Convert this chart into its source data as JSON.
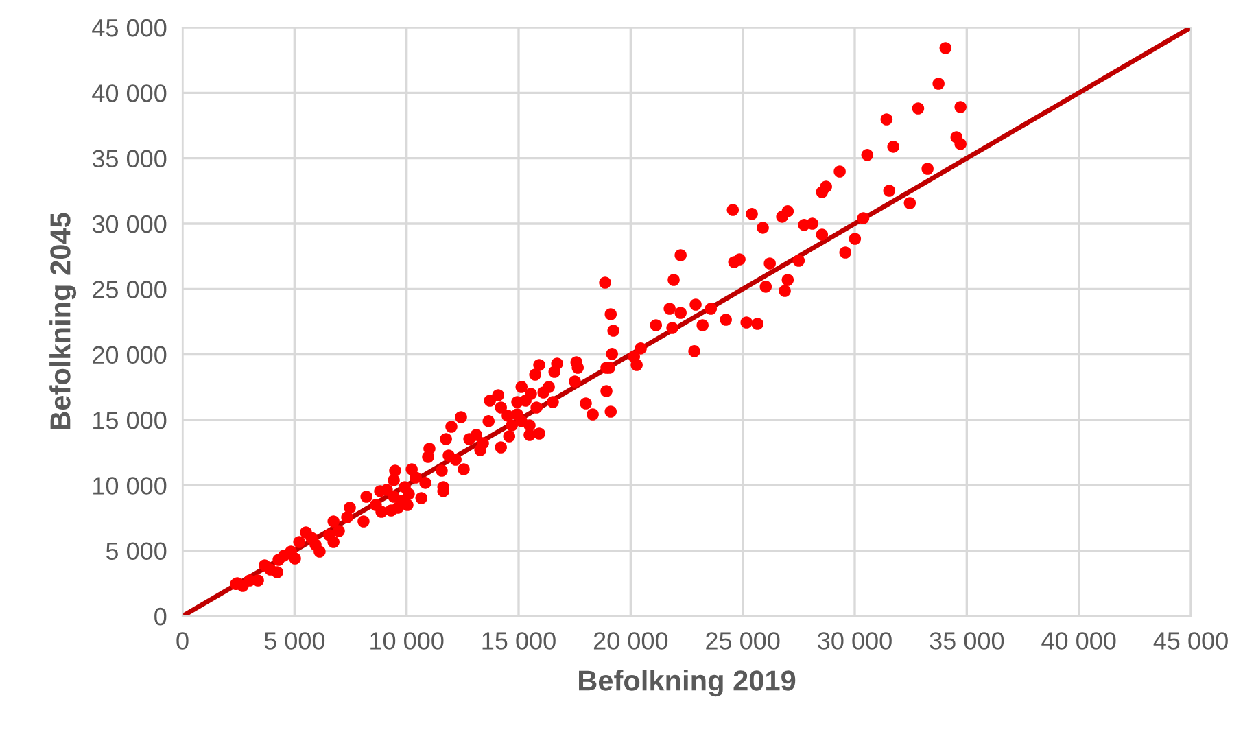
{
  "chart_data": {
    "type": "scatter",
    "xlabel": "Befolkning 2019",
    "ylabel": "Befolkning 2045",
    "xlim": [
      0,
      45000
    ],
    "ylim": [
      0,
      45000
    ],
    "xticks": [
      0,
      {
        "value": 5000,
        "label": "5 000"
      },
      {
        "value": 10000,
        "label": "10 000"
      },
      {
        "value": 15000,
        "label": "15 000"
      },
      {
        "value": 20000,
        "label": "20 000"
      },
      {
        "value": 25000,
        "label": "25 000"
      },
      {
        "value": 30000,
        "label": "30 000"
      },
      {
        "value": 35000,
        "label": "35 000"
      },
      {
        "value": 40000,
        "label": "40 000"
      },
      {
        "value": 45000,
        "label": "45 000"
      }
    ],
    "yticks": [
      0,
      {
        "value": 5000,
        "label": "5 000"
      },
      {
        "value": 10000,
        "label": "10 000"
      },
      {
        "value": 15000,
        "label": "15 000"
      },
      {
        "value": 20000,
        "label": "20 000"
      },
      {
        "value": 25000,
        "label": "25 000"
      },
      {
        "value": 30000,
        "label": "30 000"
      },
      {
        "value": 35000,
        "label": "35 000"
      },
      {
        "value": 40000,
        "label": "40 000"
      },
      {
        "value": 45000,
        "label": "45 000"
      }
    ],
    "grid": true,
    "series": [
      {
        "marker": "circle",
        "color": "#ff0000",
        "x": [
          34050,
          33740,
          32830,
          34720,
          31420,
          31720,
          34540,
          34720,
          30560,
          29330,
          33250,
          28540,
          28720,
          31540,
          32460,
          30380,
          26760,
          27010,
          24560,
          25410,
          25900,
          27740,
          28110,
          28540,
          30010,
          29580,
          24620,
          24860,
          26210,
          27500,
          27010,
          26030,
          26880,
          22230,
          21920,
          21740,
          22230,
          22900,
          23580,
          21860,
          23210,
          24250,
          25170,
          25660,
          22840,
          18860,
          19110,
          19230,
          19170,
          18920,
          19050,
          18920,
          19110,
          18000,
          18310,
          21130,
          20450,
          20270,
          20150,
          17580,
          17640,
          17510,
          16720,
          16600,
          15920,
          15740,
          16350,
          16110,
          15130,
          15550,
          16530,
          15310,
          15800,
          13720,
          14090,
          14210,
          14510,
          14940,
          15130,
          12430,
          12000,
          11760,
          13660,
          15490,
          15490,
          15920,
          14580,
          13110,
          12800,
          13410,
          14210,
          11020,
          14940,
          14700,
          13290,
          10960,
          11880,
          12190,
          12550,
          11570,
          11640,
          11640,
          10230,
          10410,
          10840,
          9490,
          9430,
          9920,
          9120,
          9430,
          9800,
          9610,
          9310,
          10100,
          10040,
          10660,
          8210,
          8820,
          8630,
          8880,
          8080,
          7470,
          7350,
          6740,
          6980,
          6550,
          6740,
          5940,
          6120,
          5760,
          5510,
          5210,
          4840,
          5020,
          4290,
          4530,
          3670,
          3920,
          4230,
          3370,
          2450,
          2690,
          3000,
          2390
        ],
        "values": [
          43430,
          40700,
          38810,
          38920,
          37970,
          35880,
          36610,
          36090,
          35250,
          33990,
          34200,
          32410,
          32830,
          32520,
          31570,
          30420,
          30530,
          30950,
          31050,
          30740,
          29690,
          29900,
          30000,
          29160,
          28850,
          27800,
          27060,
          27270,
          26960,
          27170,
          25700,
          25180,
          24860,
          27590,
          25700,
          23500,
          23180,
          23810,
          23500,
          22030,
          22240,
          22660,
          22450,
          22340,
          20250,
          25490,
          23080,
          21820,
          20040,
          18990,
          18990,
          17200,
          15630,
          16260,
          15420,
          22240,
          20460,
          19200,
          19830,
          19410,
          18990,
          17940,
          19300,
          18670,
          19200,
          18460,
          17520,
          17100,
          17520,
          16990,
          16360,
          16470,
          15940,
          16470,
          16890,
          15940,
          15320,
          15420,
          14900,
          15210,
          14480,
          13530,
          14900,
          14580,
          13850,
          13950,
          13740,
          13850,
          13530,
          13220,
          12900,
          12800,
          16360,
          14580,
          12690,
          12170,
          12270,
          11960,
          11220,
          11120,
          9860,
          9550,
          11220,
          10590,
          10180,
          11120,
          10390,
          9860,
          9650,
          9130,
          8810,
          8290,
          8080,
          9340,
          8500,
          9020,
          9130,
          9550,
          8500,
          7970,
          7240,
          8290,
          7550,
          7240,
          6500,
          6190,
          5660,
          5450,
          4930,
          5980,
          6400,
          5660,
          4930,
          4410,
          4300,
          4620,
          3880,
          3570,
          3360,
          2730,
          2520,
          2310,
          2730,
          2450
        ]
      },
      {
        "type": "line",
        "color": "#c00000",
        "x": [
          0,
          45000
        ],
        "values": [
          0,
          45000
        ]
      }
    ]
  }
}
